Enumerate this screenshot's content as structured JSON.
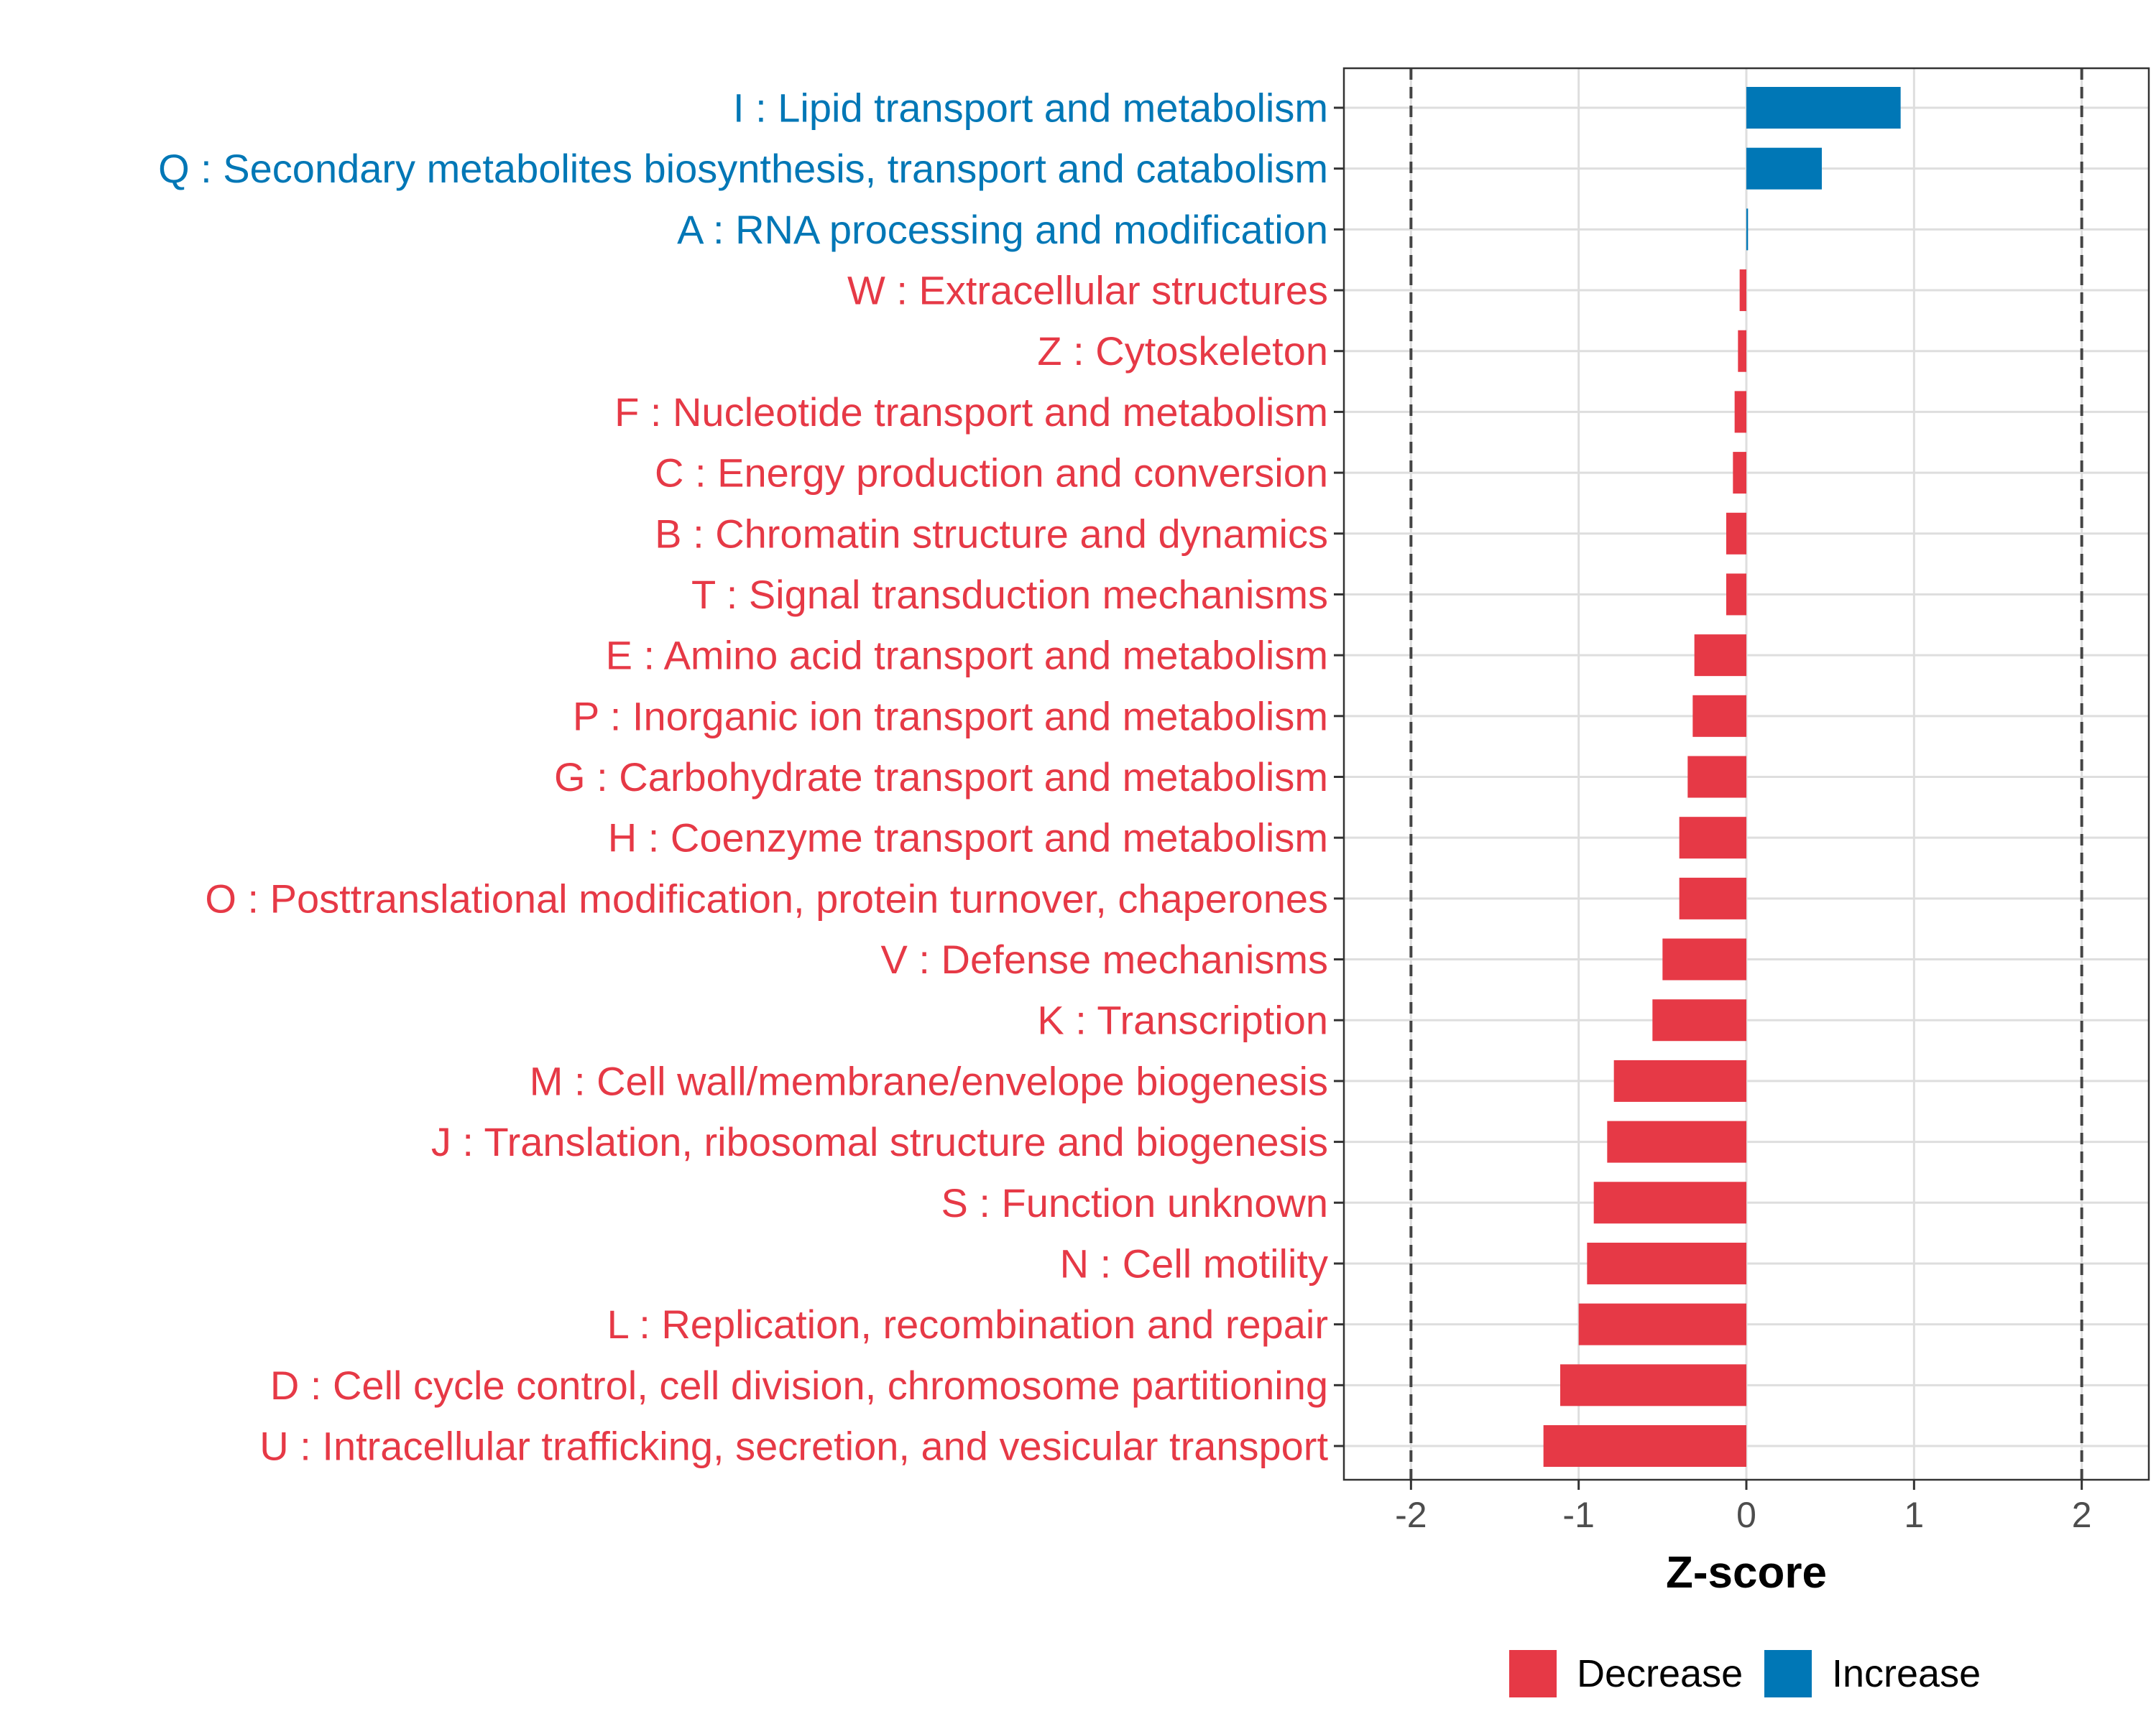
{
  "chart_data": {
    "type": "bar",
    "orientation": "horizontal",
    "categories": [
      "I : Lipid transport and metabolism",
      "Q : Secondary metabolites biosynthesis, transport and catabolism",
      "A : RNA processing and modification",
      "W : Extracellular structures",
      "Z : Cytoskeleton",
      "F : Nucleotide transport and metabolism",
      "C : Energy production and conversion",
      "B : Chromatin structure and dynamics",
      "T : Signal transduction mechanisms",
      "E : Amino acid transport and metabolism",
      "P : Inorganic ion transport and metabolism",
      "G : Carbohydrate transport and metabolism",
      "H : Coenzyme transport and metabolism",
      "O : Posttranslational modification, protein turnover, chaperones",
      "V : Defense mechanisms",
      "K : Transcription",
      "M : Cell wall/membrane/envelope biogenesis",
      "J : Translation, ribosomal structure and biogenesis",
      "S : Function unknown",
      "N : Cell motility",
      "L : Replication, recombination and repair",
      "D : Cell cycle control, cell division, chromosome partitioning",
      "U : Intracellular trafficking, secretion, and vesicular transport"
    ],
    "values": [
      0.92,
      0.45,
      0.01,
      -0.04,
      -0.05,
      -0.07,
      -0.08,
      -0.12,
      -0.12,
      -0.31,
      -0.32,
      -0.35,
      -0.4,
      -0.4,
      -0.5,
      -0.56,
      -0.79,
      -0.83,
      -0.91,
      -0.95,
      -1.0,
      -1.11,
      -1.21
    ],
    "direction": [
      "Increase",
      "Increase",
      "Increase",
      "Decrease",
      "Decrease",
      "Decrease",
      "Decrease",
      "Decrease",
      "Decrease",
      "Decrease",
      "Decrease",
      "Decrease",
      "Decrease",
      "Decrease",
      "Decrease",
      "Decrease",
      "Decrease",
      "Decrease",
      "Decrease",
      "Decrease",
      "Decrease",
      "Decrease",
      "Decrease"
    ],
    "xlabel": "Z-score",
    "ylabel": "",
    "title": "",
    "xlim": [
      -2.4,
      2.4
    ],
    "xticks": [
      -2,
      -1,
      0,
      1,
      2
    ],
    "xtick_labels": [
      "-2",
      "-1",
      "0",
      "1",
      "2"
    ],
    "reference_lines": [
      -2,
      2
    ],
    "grid": true,
    "legend": {
      "position": "bottom",
      "entries": [
        {
          "label": "Decrease",
          "color": "#E63946"
        },
        {
          "label": "Increase",
          "color": "#0077B6"
        }
      ]
    },
    "colors": {
      "Decrease": "#E63946",
      "Increase": "#0077B6"
    }
  }
}
